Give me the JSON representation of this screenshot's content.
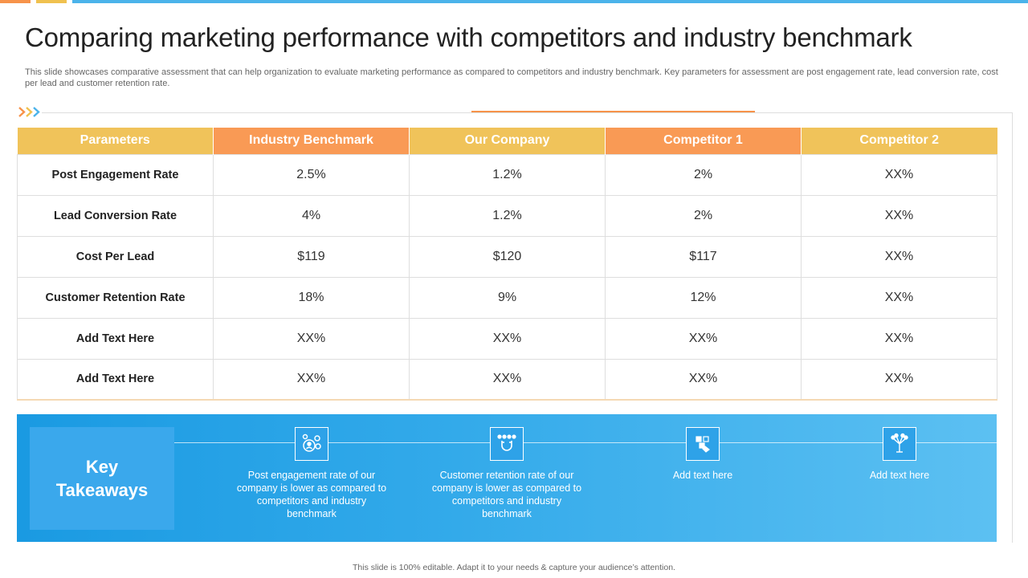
{
  "header": {
    "title": "Comparing marketing performance with competitors and industry benchmark",
    "subtitle": "This slide showcases comparative assessment that can help organization to evaluate marketing performance as compared to competitors and industry benchmark. Key parameters for assessment are post engagement rate, lead conversion rate, cost per lead and customer retention rate."
  },
  "colors": {
    "orange": "#f99a55",
    "yellow": "#f0c35a",
    "blue": "#1a9ae2"
  },
  "table": {
    "headers": [
      "Parameters",
      "Industry Benchmark",
      "Our Company",
      "Competitor 1",
      "Competitor 2"
    ],
    "rows": [
      [
        "Post Engagement Rate",
        "2.5%",
        "1.2%",
        "2%",
        "XX%"
      ],
      [
        "Lead Conversion Rate",
        "4%",
        "1.2%",
        "2%",
        "XX%"
      ],
      [
        "Cost Per Lead",
        "$119",
        "$120",
        "$117",
        "XX%"
      ],
      [
        "Customer Retention Rate",
        "18%",
        "9%",
        "12%",
        "XX%"
      ],
      [
        "Add  Text Here",
        "XX%",
        "XX%",
        "XX%",
        "XX%"
      ],
      [
        "Add  Text Here",
        "XX%",
        "XX%",
        "XX%",
        "XX%"
      ]
    ]
  },
  "takeaways": {
    "title_line1": "Key",
    "title_line2": "Takeaways",
    "items": [
      {
        "icon": "people-network-icon",
        "text": "Post engagement rate of our company is lower as compared to competitors and industry benchmark"
      },
      {
        "icon": "magnet-people-icon",
        "text": "Customer retention rate of our company is lower as compared to competitors and industry benchmark"
      },
      {
        "icon": "hand-blocks-icon",
        "text": "Add text here"
      },
      {
        "icon": "idea-network-icon",
        "text": "Add text here"
      }
    ]
  },
  "footer": {
    "text": "This slide is 100% editable.  Adapt it to your needs & capture your audience’s attention."
  }
}
